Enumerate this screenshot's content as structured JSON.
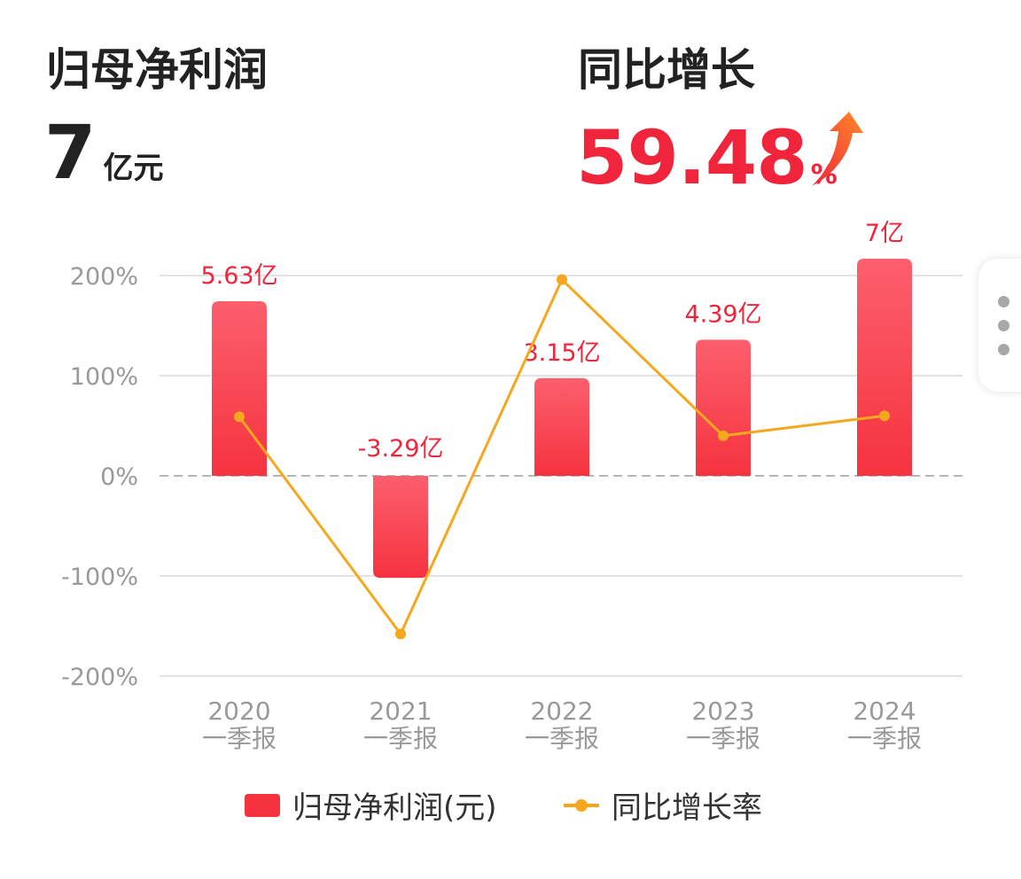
{
  "summary": {
    "profit_label": "归母净利润",
    "profit_value": "7",
    "profit_unit": "亿元",
    "growth_label": "同比增长",
    "growth_value": "59.48",
    "growth_unit": "%",
    "growth_icon": "up-arrow-icon"
  },
  "chart_data": {
    "type": "bar",
    "categories": [
      [
        "2020",
        "一季报"
      ],
      [
        "2021",
        "一季报"
      ],
      [
        "2022",
        "一季报"
      ],
      [
        "2023",
        "一季报"
      ],
      [
        "2024",
        "一季报"
      ]
    ],
    "series": [
      {
        "name": "归母净利润(元)",
        "type": "bar",
        "values": [
          5.63,
          -3.29,
          3.15,
          4.39,
          7
        ],
        "labels": [
          "5.63亿",
          "-3.29亿",
          "3.15亿",
          "4.39亿",
          "7亿"
        ],
        "color": "#f5333f"
      },
      {
        "name": "同比增长率",
        "type": "line",
        "values": [
          59,
          -158,
          196,
          40,
          60
        ],
        "color": "#f5a81e"
      }
    ],
    "y_axis": {
      "ticks": [
        200,
        100,
        0,
        -100,
        -200
      ],
      "tick_labels": [
        "200%",
        "100%",
        "0%",
        "-100%",
        "-200%"
      ],
      "range": [
        -200,
        200
      ]
    },
    "grid": true,
    "legend_position": "bottom",
    "label_color": "#f0243a",
    "tick_color": "#999999"
  }
}
